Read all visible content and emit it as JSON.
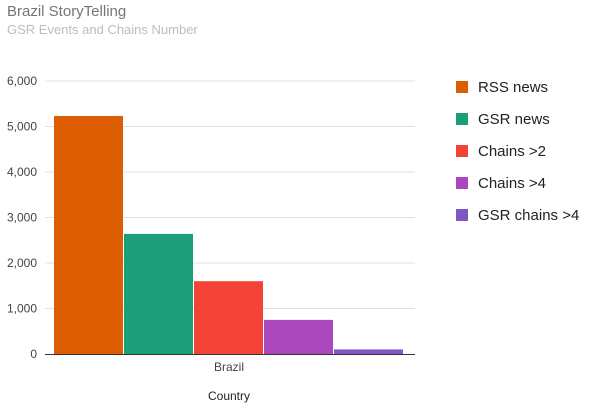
{
  "chart_data": {
    "type": "bar",
    "title": "Brazil StoryTelling",
    "subtitle": "GSR Events and Chains Number",
    "xlabel": "Country",
    "ylabel": "",
    "categories": [
      "Brazil"
    ],
    "ylim": [
      0,
      6000
    ],
    "yticks": [
      0,
      1000,
      2000,
      3000,
      4000,
      5000,
      6000
    ],
    "ytick_labels": [
      "0",
      "1,000",
      "2,000",
      "3,000",
      "4,000",
      "5,000",
      "6,000"
    ],
    "grid": true,
    "legend_position": "right",
    "series": [
      {
        "name": "RSS news",
        "values": [
          5230
        ],
        "color": "#dd5e00"
      },
      {
        "name": "GSR news",
        "values": [
          2640
        ],
        "color": "#1c9e78"
      },
      {
        "name": "Chains >2",
        "values": [
          1600
        ],
        "color": "#f44336"
      },
      {
        "name": "Chains >4",
        "values": [
          750
        ],
        "color": "#ab47bc"
      },
      {
        "name": "GSR chains >4",
        "values": [
          100
        ],
        "color": "#7e57c2"
      }
    ]
  }
}
